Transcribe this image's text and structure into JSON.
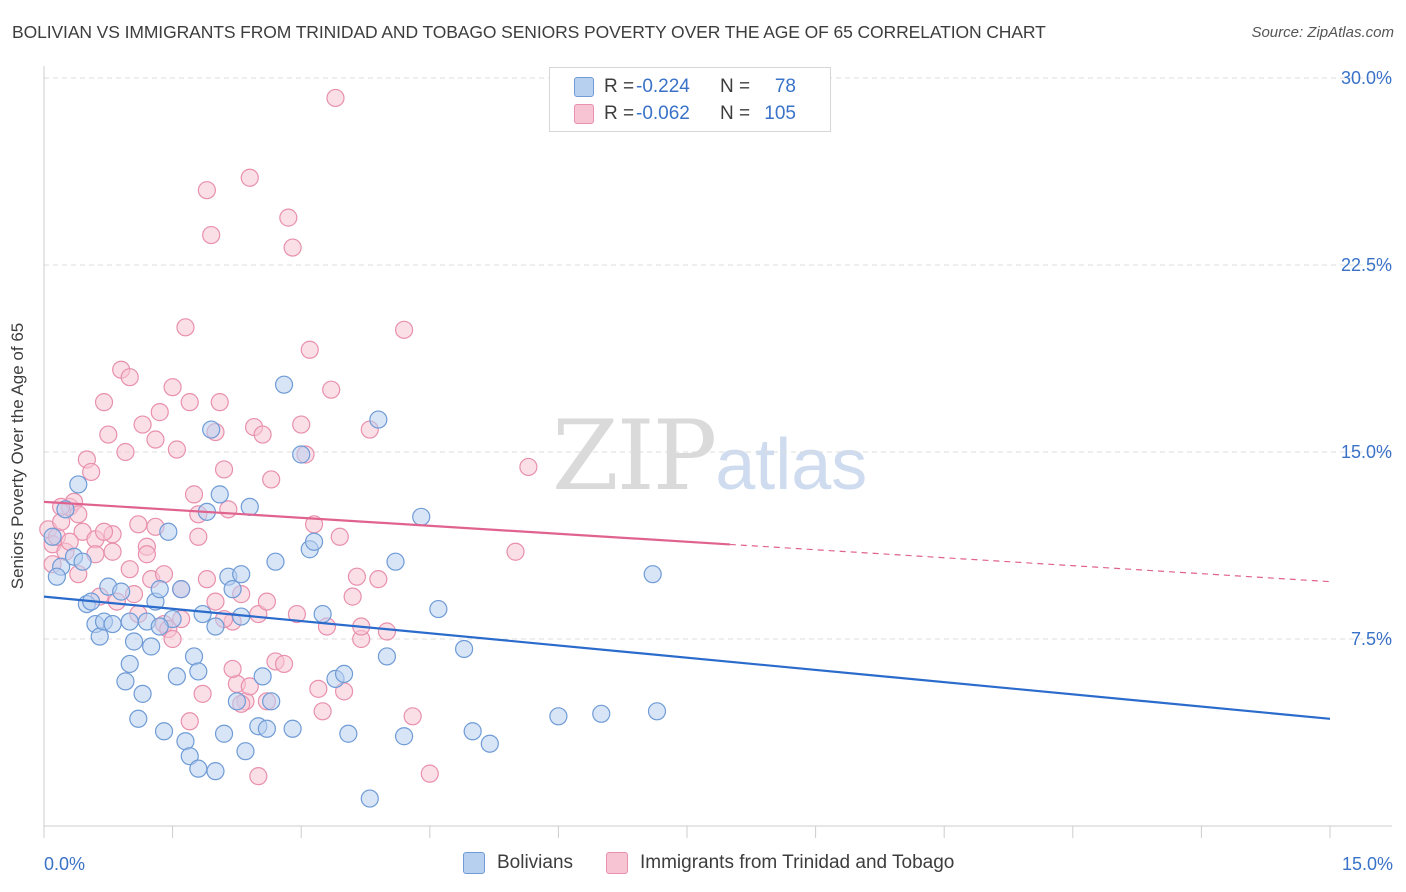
{
  "title": "BOLIVIAN VS IMMIGRANTS FROM TRINIDAD AND TOBAGO SENIORS POVERTY OVER THE AGE OF 65 CORRELATION CHART",
  "source": "Source: ZipAtlas.com",
  "watermark": {
    "zip": "ZIP",
    "atlas": "atlas"
  },
  "legend": {
    "rows": [
      {
        "r_label": "R =",
        "r_value": "-0.224",
        "n_label": "N =",
        "n_value": "78"
      },
      {
        "r_label": "R =",
        "r_value": "-0.062",
        "n_label": "N =",
        "n_value": "105"
      }
    ]
  },
  "colors": {
    "blue_fill": "#b8d0f0",
    "blue_stroke": "#6f9bd6",
    "blue_line": "#2a6bcc",
    "pink_fill": "#f7c4d4",
    "pink_stroke": "#e890ad",
    "pink_line": "#e0628f",
    "axis_text": "#3a72c8",
    "grid": "#dcdcdc"
  },
  "chart_data": {
    "type": "scatter",
    "xlabel": "",
    "ylabel": "Seniors Poverty Over the Age of 65",
    "xlim": [
      0,
      15
    ],
    "ylim": [
      0,
      30
    ],
    "x_tick_labels": [
      "0.0%",
      "15.0%"
    ],
    "y_ticks": [
      7.5,
      15.0,
      22.5,
      30.0
    ],
    "y_tick_labels": [
      "7.5%",
      "15.0%",
      "22.5%",
      "30.0%"
    ],
    "grid": true,
    "series": [
      {
        "name": "Bolivians",
        "color": "#6f9bd6",
        "trend": {
          "x0": 0,
          "y0": 9.2,
          "x1": 15,
          "y1": 4.3
        },
        "points": [
          [
            0.1,
            11.6
          ],
          [
            0.2,
            10.4
          ],
          [
            0.25,
            12.7
          ],
          [
            0.35,
            10.8
          ],
          [
            0.4,
            13.7
          ],
          [
            0.45,
            10.6
          ],
          [
            0.5,
            8.9
          ],
          [
            0.6,
            8.1
          ],
          [
            0.65,
            7.6
          ],
          [
            0.7,
            8.2
          ],
          [
            0.75,
            9.6
          ],
          [
            0.8,
            8.1
          ],
          [
            0.9,
            9.4
          ],
          [
            0.95,
            5.8
          ],
          [
            1.0,
            8.2
          ],
          [
            1.05,
            7.4
          ],
          [
            1.1,
            4.3
          ],
          [
            1.15,
            5.3
          ],
          [
            1.2,
            8.2
          ],
          [
            1.25,
            7.2
          ],
          [
            1.3,
            9.0
          ],
          [
            1.35,
            9.5
          ],
          [
            1.4,
            3.8
          ],
          [
            1.45,
            11.8
          ],
          [
            1.5,
            8.3
          ],
          [
            1.55,
            6.0
          ],
          [
            1.6,
            9.5
          ],
          [
            1.65,
            3.4
          ],
          [
            1.7,
            2.8
          ],
          [
            1.75,
            6.8
          ],
          [
            1.8,
            6.2
          ],
          [
            1.85,
            8.5
          ],
          [
            1.9,
            12.6
          ],
          [
            1.95,
            15.9
          ],
          [
            2.0,
            8.0
          ],
          [
            2.05,
            13.3
          ],
          [
            2.1,
            3.7
          ],
          [
            2.15,
            10.0
          ],
          [
            2.2,
            9.5
          ],
          [
            2.25,
            5.0
          ],
          [
            2.3,
            10.1
          ],
          [
            2.35,
            3.0
          ],
          [
            2.4,
            12.8
          ],
          [
            2.5,
            4.0
          ],
          [
            2.55,
            6.0
          ],
          [
            2.6,
            3.9
          ],
          [
            2.65,
            5.0
          ],
          [
            2.7,
            10.6
          ],
          [
            2.8,
            17.7
          ],
          [
            2.9,
            3.9
          ],
          [
            3.0,
            14.9
          ],
          [
            3.1,
            11.1
          ],
          [
            3.15,
            11.4
          ],
          [
            3.25,
            8.5
          ],
          [
            3.4,
            5.9
          ],
          [
            3.5,
            6.1
          ],
          [
            3.55,
            3.7
          ],
          [
            3.8,
            1.1
          ],
          [
            3.9,
            16.3
          ],
          [
            4.0,
            6.8
          ],
          [
            4.1,
            10.6
          ],
          [
            4.2,
            3.6
          ],
          [
            4.4,
            12.4
          ],
          [
            4.6,
            8.7
          ],
          [
            4.9,
            7.1
          ],
          [
            5.0,
            3.8
          ],
          [
            5.2,
            3.3
          ],
          [
            6.0,
            4.4
          ],
          [
            6.5,
            4.5
          ],
          [
            7.1,
            10.1
          ],
          [
            7.15,
            4.6
          ],
          [
            0.15,
            10.0
          ],
          [
            1.8,
            2.3
          ],
          [
            2.0,
            2.2
          ],
          [
            0.55,
            9.0
          ],
          [
            1.0,
            6.5
          ],
          [
            1.35,
            8.0
          ],
          [
            2.3,
            8.4
          ]
        ]
      },
      {
        "name": "Immigrants from Trinidad and Tobago",
        "color": "#e890ad",
        "trend": {
          "x0": 0,
          "y0": 13.0,
          "x1": 15,
          "y1": 9.8,
          "solid_until_x": 8.0
        },
        "points": [
          [
            0.05,
            11.9
          ],
          [
            0.1,
            11.3
          ],
          [
            0.15,
            11.6
          ],
          [
            0.2,
            12.2
          ],
          [
            0.25,
            11.0
          ],
          [
            0.3,
            12.8
          ],
          [
            0.35,
            13.0
          ],
          [
            0.4,
            12.5
          ],
          [
            0.45,
            11.8
          ],
          [
            0.5,
            14.7
          ],
          [
            0.55,
            14.2
          ],
          [
            0.6,
            11.5
          ],
          [
            0.65,
            9.2
          ],
          [
            0.7,
            17.0
          ],
          [
            0.75,
            15.7
          ],
          [
            0.8,
            11.7
          ],
          [
            0.85,
            9.0
          ],
          [
            0.9,
            18.3
          ],
          [
            0.95,
            15.0
          ],
          [
            1.0,
            10.3
          ],
          [
            1.05,
            9.3
          ],
          [
            1.1,
            8.5
          ],
          [
            1.15,
            16.1
          ],
          [
            1.2,
            11.2
          ],
          [
            1.25,
            9.9
          ],
          [
            1.3,
            15.5
          ],
          [
            1.35,
            16.6
          ],
          [
            1.4,
            8.1
          ],
          [
            1.45,
            7.9
          ],
          [
            1.5,
            17.6
          ],
          [
            1.55,
            15.1
          ],
          [
            1.6,
            8.3
          ],
          [
            1.65,
            20.0
          ],
          [
            1.7,
            17.0
          ],
          [
            1.75,
            13.3
          ],
          [
            1.8,
            11.6
          ],
          [
            1.85,
            5.3
          ],
          [
            1.9,
            25.5
          ],
          [
            1.95,
            23.7
          ],
          [
            2.0,
            15.8
          ],
          [
            2.05,
            17.0
          ],
          [
            2.1,
            14.3
          ],
          [
            2.15,
            12.7
          ],
          [
            2.2,
            8.2
          ],
          [
            2.25,
            5.7
          ],
          [
            2.3,
            9.3
          ],
          [
            2.35,
            5.0
          ],
          [
            2.4,
            26.0
          ],
          [
            2.45,
            16.0
          ],
          [
            2.5,
            8.5
          ],
          [
            2.55,
            15.7
          ],
          [
            2.6,
            9.0
          ],
          [
            2.65,
            13.9
          ],
          [
            2.7,
            6.6
          ],
          [
            2.8,
            6.5
          ],
          [
            2.85,
            24.4
          ],
          [
            2.9,
            23.2
          ],
          [
            2.95,
            8.5
          ],
          [
            3.0,
            16.1
          ],
          [
            3.05,
            14.9
          ],
          [
            3.1,
            19.1
          ],
          [
            3.15,
            12.1
          ],
          [
            3.2,
            5.5
          ],
          [
            3.25,
            4.6
          ],
          [
            3.3,
            8.0
          ],
          [
            3.35,
            17.5
          ],
          [
            3.4,
            29.2
          ],
          [
            3.45,
            11.6
          ],
          [
            3.5,
            5.4
          ],
          [
            3.6,
            9.2
          ],
          [
            3.65,
            10.0
          ],
          [
            3.7,
            7.5
          ],
          [
            3.8,
            15.9
          ],
          [
            3.9,
            9.9
          ],
          [
            4.0,
            7.8
          ],
          [
            4.2,
            19.9
          ],
          [
            4.3,
            4.4
          ],
          [
            4.5,
            2.1
          ],
          [
            5.5,
            11.0
          ],
          [
            5.65,
            14.4
          ],
          [
            0.1,
            10.5
          ],
          [
            0.2,
            12.8
          ],
          [
            0.3,
            11.4
          ],
          [
            0.4,
            10.1
          ],
          [
            0.6,
            10.9
          ],
          [
            0.7,
            11.8
          ],
          [
            0.8,
            11.0
          ],
          [
            1.0,
            18.0
          ],
          [
            1.1,
            12.1
          ],
          [
            1.2,
            10.9
          ],
          [
            1.3,
            12.0
          ],
          [
            1.4,
            10.1
          ],
          [
            1.5,
            7.5
          ],
          [
            1.6,
            9.5
          ],
          [
            1.7,
            4.2
          ],
          [
            1.8,
            12.5
          ],
          [
            1.9,
            9.9
          ],
          [
            2.0,
            9.0
          ],
          [
            2.1,
            8.3
          ],
          [
            2.2,
            6.3
          ],
          [
            2.3,
            4.9
          ],
          [
            2.4,
            5.6
          ],
          [
            2.5,
            2.0
          ],
          [
            2.6,
            5.0
          ],
          [
            3.7,
            8.0
          ]
        ]
      }
    ]
  },
  "bottom_legend": [
    {
      "label": "Bolivians"
    },
    {
      "label": "Immigrants from Trinidad and Tobago"
    }
  ]
}
